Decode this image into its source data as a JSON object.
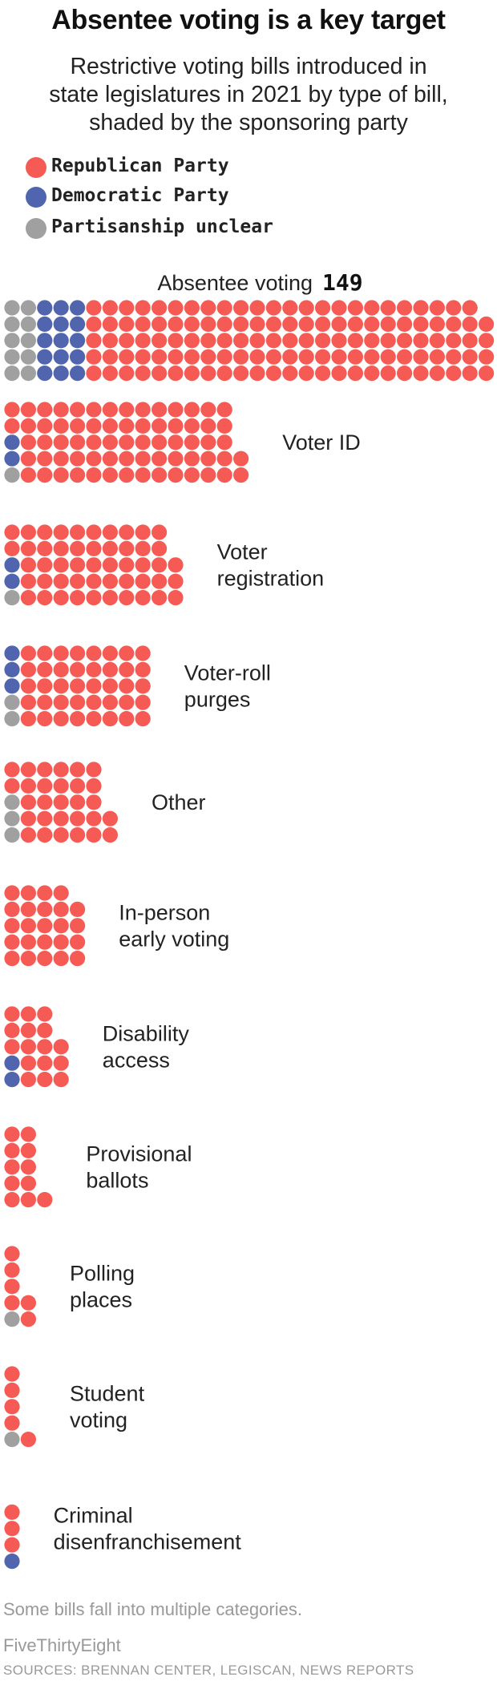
{
  "title": "Absentee voting is a key target",
  "subtitle": [
    "Restrictive voting bills introduced in",
    "state legislatures in 2021 by type of bill,",
    "shaded by the sponsoring party"
  ],
  "legend": [
    {
      "label": "Republican Party",
      "color": "#f65a54"
    },
    {
      "label": "Democratic Party",
      "color": "#5065ad"
    },
    {
      "label": "Partisanship unclear",
      "color": "#a0a0a0"
    }
  ],
  "note": "Some bills fall into multiple categories.",
  "brand": "FiveThirtyEight",
  "sources": "SOURCES: BRENNAN CENTER, LEGISCAN,  NEWS REPORTS",
  "chart_data": {
    "type": "waffle",
    "unit": "bills",
    "series": [
      "Republican Party",
      "Democratic Party",
      "Partisanship unclear"
    ],
    "colors": {
      "Republican Party": "#f65a54",
      "Democratic Party": "#5065ad",
      "Partisanship unclear": "#a0a0a0"
    },
    "categories": [
      {
        "label": [
          "Absentee voting"
        ],
        "count_label": "149",
        "values": {
          "Republican Party": 124,
          "Democratic Party": 15,
          "Partisanship unclear": 10
        }
      },
      {
        "label": [
          "Voter ID"
        ],
        "values": {
          "Republican Party": 69,
          "Democratic Party": 2,
          "Partisanship unclear": 1
        }
      },
      {
        "label": [
          "Voter",
          "registration"
        ],
        "values": {
          "Republican Party": 50,
          "Democratic Party": 2,
          "Partisanship unclear": 1
        }
      },
      {
        "label": [
          "Voter-roll",
          "purges"
        ],
        "values": {
          "Republican Party": 40,
          "Democratic Party": 3,
          "Partisanship unclear": 2
        }
      },
      {
        "label": [
          "Other"
        ],
        "values": {
          "Republican Party": 29,
          "Democratic Party": 0,
          "Partisanship unclear": 3
        }
      },
      {
        "label": [
          "In-person",
          "early voting"
        ],
        "values": {
          "Republican Party": 24,
          "Democratic Party": 0,
          "Partisanship unclear": 0
        }
      },
      {
        "label": [
          "Disability",
          "access"
        ],
        "values": {
          "Republican Party": 16,
          "Democratic Party": 2,
          "Partisanship unclear": 0
        }
      },
      {
        "label": [
          "Provisional",
          "ballots"
        ],
        "values": {
          "Republican Party": 11,
          "Democratic Party": 0,
          "Partisanship unclear": 0
        }
      },
      {
        "label": [
          "Polling",
          "places"
        ],
        "values": {
          "Republican Party": 6,
          "Democratic Party": 0,
          "Partisanship unclear": 1
        }
      },
      {
        "label": [
          "Student",
          "voting"
        ],
        "values": {
          "Republican Party": 5,
          "Democratic Party": 0,
          "Partisanship unclear": 1
        }
      },
      {
        "label": [
          "Criminal",
          "disenfranchisement"
        ],
        "values": {
          "Republican Party": 3,
          "Democratic Party": 1,
          "Partisanship unclear": 0
        }
      }
    ]
  }
}
